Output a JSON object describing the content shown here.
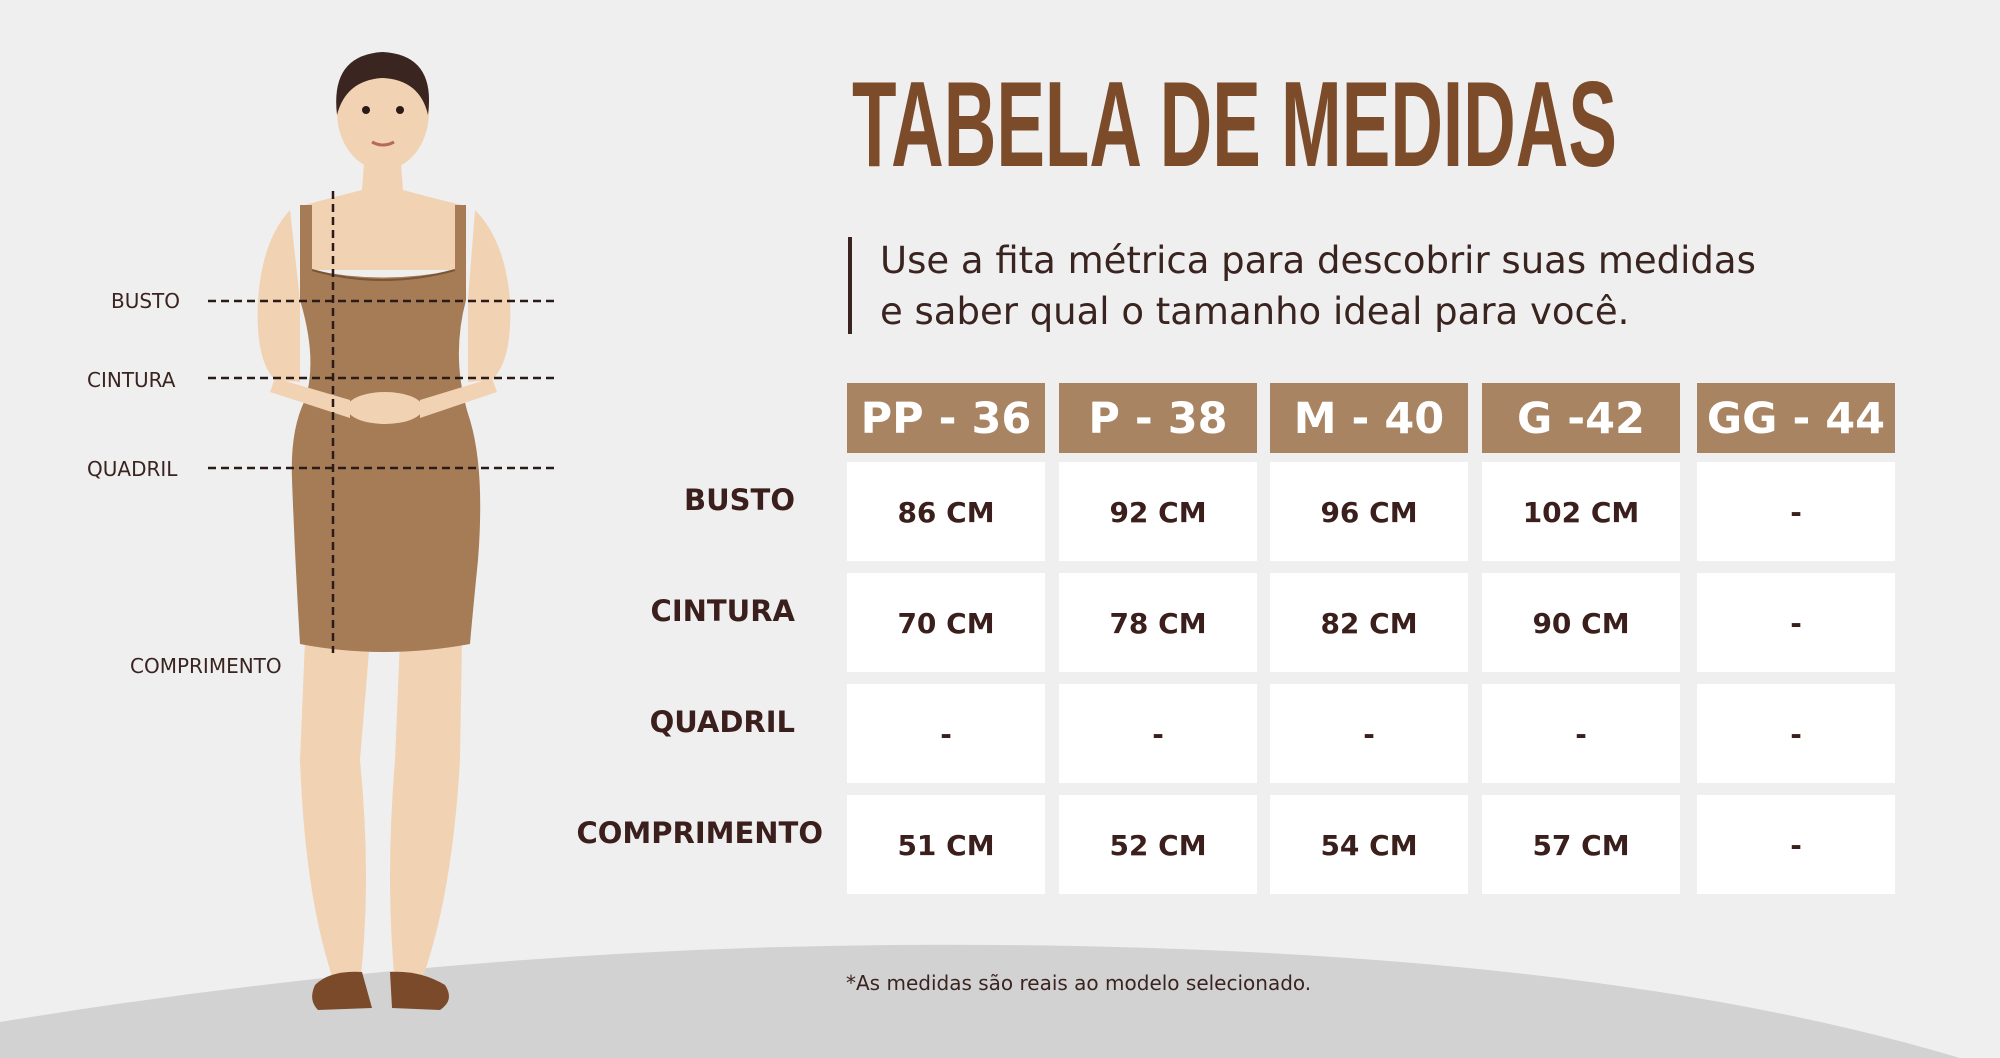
{
  "title": "TABELA DE MEDIDAS",
  "subtitle": [
    "Use a fita métrica para descobrir suas medidas",
    "e saber qual o tamanho ideal para você."
  ],
  "figure": {
    "labels": [
      "BUSTO",
      "CINTURA",
      "QUADRIL",
      "COMPRIMENTO"
    ]
  },
  "table": {
    "columns": [
      "PP - 36",
      "P - 38",
      "M - 40",
      "G -42",
      "GG - 44"
    ],
    "rows": [
      {
        "label": "BUSTO",
        "cells": [
          "86 CM",
          "92 CM",
          "96 CM",
          "102 CM",
          "-"
        ]
      },
      {
        "label": "CINTURA",
        "cells": [
          "70 CM",
          "78 CM",
          "82 CM",
          "90 CM",
          "-"
        ]
      },
      {
        "label": "QUADRIL",
        "cells": [
          "-",
          "-",
          "-",
          "-",
          "-"
        ]
      },
      {
        "label": "COMPRIMENTO",
        "cells": [
          "51 CM",
          "52 CM",
          "54 CM",
          "57 CM",
          "-"
        ]
      }
    ]
  },
  "footnote": "*As medidas são reais ao modelo selecionado."
}
